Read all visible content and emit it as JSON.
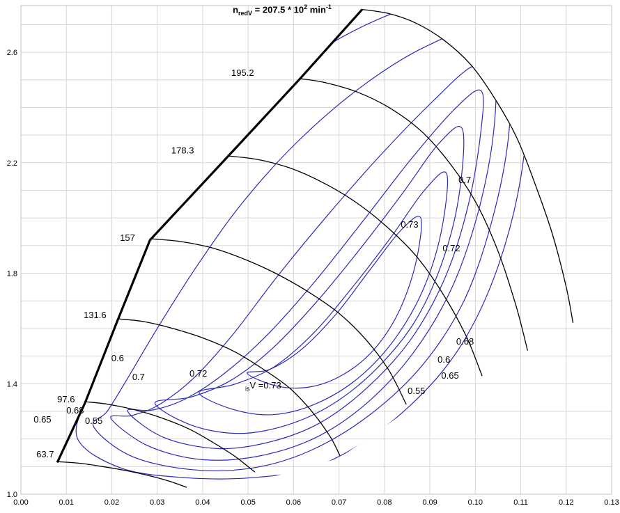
{
  "chart_data": {
    "type": "line",
    "description": "Compressor map: reduced speed lines with surge line (black) and isentropic efficiency contours (blue)",
    "title": {
      "var": "n",
      "var_sub": "redV",
      "equals": " = 207.5 * 10",
      "power": "2",
      "unit": " min",
      "unit_power": "-1"
    },
    "isv_label": {
      "sub": "is",
      "rest": "V =0.73"
    },
    "colors": {
      "speed_line": "#000000",
      "surge_line": "#000000",
      "contour": "#2a2ab8",
      "grid": "#d6d6d6",
      "border": "#c0c0c0",
      "text": "#000000"
    },
    "x_axis": {
      "min": 0,
      "max": 0.13,
      "grid_step": 0.01,
      "tick_values": [
        0,
        0.01,
        0.02,
        0.03,
        0.04,
        0.05,
        0.06,
        0.07,
        0.08,
        0.09,
        0.1,
        0.11,
        0.12,
        0.13
      ],
      "tick_labels": [
        "0.00",
        "0.01",
        "0.02",
        "0.03",
        "0.04",
        "0.05",
        "0.06",
        "0.07",
        "0.08",
        "0.09",
        "0.10",
        "0.11",
        "0.12",
        "0.13"
      ]
    },
    "y_axis": {
      "min": 1.0,
      "max": 2.769,
      "grid_step": 0.1,
      "tick_values": [
        1.0,
        1.4,
        1.8,
        2.2,
        2.6
      ],
      "tick_labels": [
        "1.0",
        "1.4",
        "1.8",
        "2.2",
        "2.6"
      ]
    },
    "surge_line": {
      "points": [
        [
          0.008,
          1.115
        ],
        [
          0.0141,
          1.33
        ],
        [
          0.0213,
          1.63
        ],
        [
          0.0284,
          1.92
        ],
        [
          0.0454,
          2.22
        ],
        [
          0.0612,
          2.5
        ],
        [
          0.0751,
          2.755
        ]
      ]
    },
    "speed_lines": [
      {
        "label": "63.7",
        "points": [
          [
            0.008,
            1.118
          ],
          [
            0.013,
            1.112
          ],
          [
            0.018,
            1.1
          ],
          [
            0.023,
            1.086
          ],
          [
            0.028,
            1.068
          ],
          [
            0.0325,
            1.048
          ],
          [
            0.0365,
            1.025
          ]
        ]
      },
      {
        "label": "97.6",
        "points": [
          [
            0.0141,
            1.335
          ],
          [
            0.019,
            1.326
          ],
          [
            0.025,
            1.306
          ],
          [
            0.031,
            1.276
          ],
          [
            0.037,
            1.236
          ],
          [
            0.042,
            1.19
          ],
          [
            0.047,
            1.138
          ],
          [
            0.0515,
            1.08
          ]
        ]
      },
      {
        "label": "131.6",
        "points": [
          [
            0.0213,
            1.635
          ],
          [
            0.027,
            1.625
          ],
          [
            0.033,
            1.602
          ],
          [
            0.04,
            1.566
          ],
          [
            0.047,
            1.516
          ],
          [
            0.053,
            1.456
          ],
          [
            0.059,
            1.386
          ],
          [
            0.064,
            1.3
          ],
          [
            0.068,
            1.21
          ],
          [
            0.0702,
            1.14
          ]
        ]
      },
      {
        "label": "157",
        "points": [
          [
            0.0284,
            1.925
          ],
          [
            0.035,
            1.915
          ],
          [
            0.042,
            1.892
          ],
          [
            0.049,
            1.852
          ],
          [
            0.056,
            1.8
          ],
          [
            0.063,
            1.735
          ],
          [
            0.07,
            1.655
          ],
          [
            0.076,
            1.558
          ],
          [
            0.081,
            1.448
          ],
          [
            0.0848,
            1.325
          ]
        ]
      },
      {
        "label": "178.3",
        "points": [
          [
            0.0454,
            2.225
          ],
          [
            0.052,
            2.212
          ],
          [
            0.059,
            2.182
          ],
          [
            0.066,
            2.132
          ],
          [
            0.073,
            2.065
          ],
          [
            0.08,
            1.976
          ],
          [
            0.087,
            1.862
          ],
          [
            0.093,
            1.722
          ],
          [
            0.098,
            1.572
          ],
          [
            0.1015,
            1.428
          ]
        ]
      },
      {
        "label": "195.2",
        "points": [
          [
            0.0612,
            2.505
          ],
          [
            0.067,
            2.49
          ],
          [
            0.074,
            2.456
          ],
          [
            0.081,
            2.4
          ],
          [
            0.088,
            2.316
          ],
          [
            0.094,
            2.206
          ],
          [
            0.1,
            2.06
          ],
          [
            0.105,
            1.88
          ],
          [
            0.109,
            1.68
          ],
          [
            0.1115,
            1.52
          ]
        ]
      },
      {
        "label": "207.5",
        "points": [
          [
            0.0751,
            2.755
          ],
          [
            0.081,
            2.74
          ],
          [
            0.087,
            2.705
          ],
          [
            0.093,
            2.645
          ],
          [
            0.099,
            2.555
          ],
          [
            0.104,
            2.44
          ],
          [
            0.109,
            2.295
          ],
          [
            0.113,
            2.13
          ],
          [
            0.117,
            1.94
          ],
          [
            0.12,
            1.75
          ],
          [
            0.1215,
            1.62
          ]
        ]
      }
    ],
    "envelope_clip": [
      [
        0.008,
        1.115
      ],
      [
        0.0141,
        1.33
      ],
      [
        0.0213,
        1.63
      ],
      [
        0.0284,
        1.92
      ],
      [
        0.0454,
        2.22
      ],
      [
        0.0612,
        2.5
      ],
      [
        0.0751,
        2.755
      ],
      [
        0.081,
        2.74
      ],
      [
        0.087,
        2.705
      ],
      [
        0.093,
        2.645
      ],
      [
        0.099,
        2.555
      ],
      [
        0.104,
        2.44
      ],
      [
        0.109,
        2.295
      ],
      [
        0.113,
        2.13
      ],
      [
        0.117,
        1.94
      ],
      [
        0.12,
        1.75
      ],
      [
        0.1215,
        1.62
      ],
      [
        0.1115,
        1.5
      ],
      [
        0.1015,
        1.41
      ],
      [
        0.0848,
        1.3
      ],
      [
        0.07,
        1.13
      ],
      [
        0.0525,
        1.05
      ],
      [
        0.0365,
        1.02
      ]
    ],
    "efficiency_contours": [
      {
        "level": "0.55",
        "points": [
          [
            0.0125,
            1.2
          ],
          [
            0.022,
            1.095
          ],
          [
            0.036,
            1.06
          ],
          [
            0.051,
            1.06
          ],
          [
            0.065,
            1.1
          ],
          [
            0.079,
            1.23
          ],
          [
            0.0915,
            1.42
          ],
          [
            0.1,
            1.63
          ],
          [
            0.1065,
            1.9
          ],
          [
            0.1105,
            2.2
          ],
          [
            0.1115,
            2.5
          ],
          [
            0.108,
            2.72
          ],
          [
            0.102,
            2.82
          ],
          [
            0.085,
            2.76
          ],
          [
            0.068,
            2.63
          ],
          [
            0.053,
            2.45
          ],
          [
            0.04,
            2.22
          ],
          [
            0.03,
            1.98
          ],
          [
            0.023,
            1.76
          ],
          [
            0.018,
            1.55
          ],
          [
            0.0145,
            1.36
          ]
        ]
      },
      {
        "level": "0.6",
        "points": [
          [
            0.016,
            1.245
          ],
          [
            0.024,
            1.14
          ],
          [
            0.037,
            1.09
          ],
          [
            0.051,
            1.095
          ],
          [
            0.064,
            1.16
          ],
          [
            0.077,
            1.29
          ],
          [
            0.0885,
            1.47
          ],
          [
            0.0975,
            1.7
          ],
          [
            0.1035,
            1.98
          ],
          [
            0.1072,
            2.28
          ],
          [
            0.1075,
            2.55
          ],
          [
            0.1035,
            2.7
          ],
          [
            0.089,
            2.62
          ],
          [
            0.0745,
            2.47
          ],
          [
            0.0605,
            2.27
          ],
          [
            0.0485,
            2.05
          ],
          [
            0.0385,
            1.82
          ],
          [
            0.03,
            1.6
          ],
          [
            0.0235,
            1.42
          ],
          [
            0.019,
            1.3
          ]
        ]
      },
      {
        "level": "0.65",
        "points": [
          [
            0.0198,
            1.275
          ],
          [
            0.028,
            1.175
          ],
          [
            0.04,
            1.125
          ],
          [
            0.053,
            1.14
          ],
          [
            0.0655,
            1.21
          ],
          [
            0.0765,
            1.335
          ],
          [
            0.0865,
            1.515
          ],
          [
            0.0945,
            1.735
          ],
          [
            0.1002,
            1.995
          ],
          [
            0.1038,
            2.28
          ],
          [
            0.1042,
            2.52
          ],
          [
            0.0995,
            2.55
          ],
          [
            0.0905,
            2.42
          ],
          [
            0.079,
            2.225
          ],
          [
            0.0675,
            2.01
          ],
          [
            0.0565,
            1.79
          ],
          [
            0.0465,
            1.575
          ],
          [
            0.038,
            1.42
          ],
          [
            0.0305,
            1.325
          ],
          [
            0.0245,
            1.285
          ]
        ]
      },
      {
        "level": "0.68",
        "points": [
          [
            0.0235,
            1.3
          ],
          [
            0.0315,
            1.205
          ],
          [
            0.0435,
            1.165
          ],
          [
            0.055,
            1.19
          ],
          [
            0.066,
            1.26
          ],
          [
            0.0765,
            1.39
          ],
          [
            0.086,
            1.565
          ],
          [
            0.0935,
            1.79
          ],
          [
            0.0985,
            2.05
          ],
          [
            0.1012,
            2.31
          ],
          [
            0.1013,
            2.46
          ],
          [
            0.0958,
            2.4
          ],
          [
            0.0862,
            2.22
          ],
          [
            0.0758,
            2.0
          ],
          [
            0.0652,
            1.78
          ],
          [
            0.0547,
            1.585
          ],
          [
            0.045,
            1.44
          ],
          [
            0.0362,
            1.345
          ],
          [
            0.029,
            1.305
          ]
        ]
      },
      {
        "level": "0.7",
        "points": [
          [
            0.0295,
            1.33
          ],
          [
            0.0375,
            1.25
          ],
          [
            0.048,
            1.22
          ],
          [
            0.0585,
            1.25
          ],
          [
            0.0685,
            1.325
          ],
          [
            0.078,
            1.45
          ],
          [
            0.0865,
            1.62
          ],
          [
            0.0925,
            1.83
          ],
          [
            0.0963,
            2.07
          ],
          [
            0.0972,
            2.32
          ],
          [
            0.092,
            2.27
          ],
          [
            0.0838,
            2.085
          ],
          [
            0.0745,
            1.885
          ],
          [
            0.065,
            1.695
          ],
          [
            0.0555,
            1.53
          ],
          [
            0.0465,
            1.415
          ],
          [
            0.0375,
            1.352
          ]
        ]
      },
      {
        "level": "0.72",
        "points": [
          [
            0.0392,
            1.368
          ],
          [
            0.0465,
            1.308
          ],
          [
            0.0555,
            1.288
          ],
          [
            0.065,
            1.328
          ],
          [
            0.0742,
            1.42
          ],
          [
            0.0822,
            1.56
          ],
          [
            0.0885,
            1.74
          ],
          [
            0.0925,
            1.95
          ],
          [
            0.0937,
            2.16
          ],
          [
            0.0888,
            2.1
          ],
          [
            0.0812,
            1.925
          ],
          [
            0.073,
            1.75
          ],
          [
            0.0645,
            1.585
          ],
          [
            0.0558,
            1.462
          ],
          [
            0.047,
            1.398
          ]
        ]
      },
      {
        "level": "0.73",
        "points": [
          [
            0.0498,
            1.438
          ],
          [
            0.0562,
            1.392
          ],
          [
            0.0635,
            1.388
          ],
          [
            0.0708,
            1.432
          ],
          [
            0.0775,
            1.52
          ],
          [
            0.083,
            1.655
          ],
          [
            0.0868,
            1.83
          ],
          [
            0.088,
            2.0
          ],
          [
            0.0836,
            1.955
          ],
          [
            0.0768,
            1.812
          ],
          [
            0.0695,
            1.655
          ],
          [
            0.0618,
            1.525
          ],
          [
            0.0548,
            1.452
          ]
        ]
      }
    ],
    "labels": [
      {
        "text": "63.7",
        "x": 0.0034,
        "y": 1.134
      },
      {
        "text": "97.6",
        "x": 0.008,
        "y": 1.333
      },
      {
        "text": "131.6",
        "x": 0.0138,
        "y": 1.638
      },
      {
        "text": "157",
        "x": 0.0218,
        "y": 1.917
      },
      {
        "text": "178.3",
        "x": 0.0331,
        "y": 2.234
      },
      {
        "text": "195.2",
        "x": 0.0463,
        "y": 2.514
      },
      {
        "text": "0.6",
        "x": 0.0199,
        "y": 1.481
      },
      {
        "text": "0.7",
        "x": 0.0245,
        "y": 1.413
      },
      {
        "text": "0.72",
        "x": 0.0371,
        "y": 1.426
      },
      {
        "text": "0.68",
        "x": 0.01,
        "y": 1.292
      },
      {
        "text": "0.55",
        "x": 0.0141,
        "y": 1.254
      },
      {
        "text": "0.65",
        "x": 0.0028,
        "y": 1.26
      },
      {
        "text": "0.7",
        "x": 0.0963,
        "y": 2.126
      },
      {
        "text": "0.73",
        "x": 0.0836,
        "y": 1.965
      },
      {
        "text": "0.72",
        "x": 0.0928,
        "y": 1.879
      },
      {
        "text": "0.68",
        "x": 0.0958,
        "y": 1.542
      },
      {
        "text": "0.6",
        "x": 0.0917,
        "y": 1.476
      },
      {
        "text": "0.65",
        "x": 0.0925,
        "y": 1.418
      },
      {
        "text": "0.55",
        "x": 0.0851,
        "y": 1.363
      }
    ]
  }
}
